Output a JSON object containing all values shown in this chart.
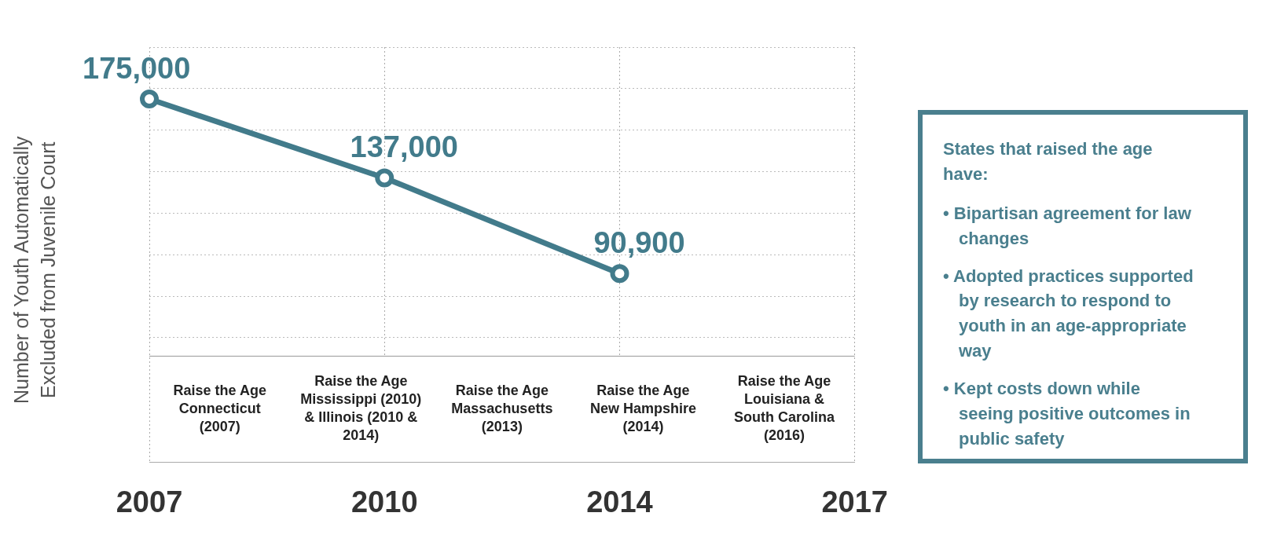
{
  "chart_data": [
    {
      "type": "line",
      "ylabel": "Number of Youth Automatically Excluded from Juvenile Court",
      "categories": [
        "2007",
        "2010",
        "2014",
        "2017"
      ],
      "series": [
        {
          "color": "#427b8b",
          "values": [
            175000,
            137000,
            90900,
            null
          ],
          "value_labels": [
            "175,000",
            "137,000",
            "90,900",
            null
          ]
        }
      ],
      "marker": "circle",
      "grid": true,
      "tick_labels": "x",
      "annotations": [
        "Raise the Age Connecticut (2007)",
        "Raise the Age Mississippi (2010) & Illinois (2010 & 2014)",
        "Raise the Age Massachusetts (2013)",
        "Raise the Age New Hampshire (2014)",
        "Raise the Age Louisiana & South Carolina (2016)"
      ]
    },
    {
      "type": "other",
      "title": "States that raised the age have:",
      "annotations": [
        "• Bipartisan agreement for law changes",
        "• Adopted practices supported by research to respond to youth in an age-appropriate way",
        "• Kept costs down while seeing positive outcomes in public safety"
      ]
    }
  ]
}
